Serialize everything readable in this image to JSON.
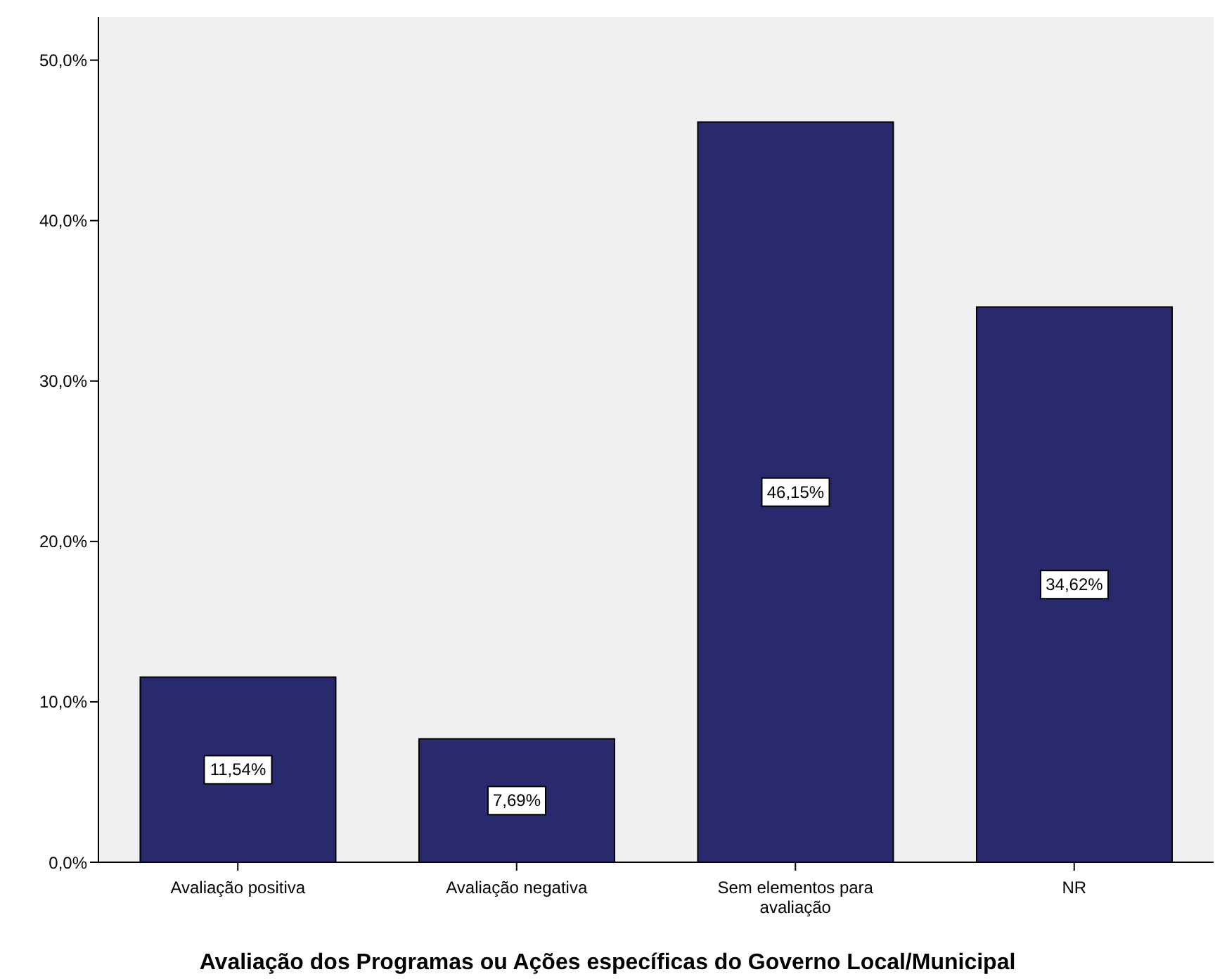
{
  "chart_data": {
    "type": "bar",
    "xlabel": "Avaliação dos Programas ou Ações específicas do Governo Local/Municipal",
    "categories": [
      "Avaliação positiva",
      "Avaliação negativa",
      "Sem elementos para avaliação",
      "NR"
    ],
    "values": [
      11.54,
      7.69,
      46.15,
      34.62
    ],
    "value_labels": [
      "11,54%",
      "7,69%",
      "46,15%",
      "34,62%"
    ],
    "color": "#29296e",
    "ylim": [
      0,
      52.7
    ],
    "yticks": [
      {
        "value": 0,
        "label": "0,0%"
      },
      {
        "value": 10,
        "label": "10,0%"
      },
      {
        "value": 20,
        "label": "20,0%"
      },
      {
        "value": 30,
        "label": "30,0%"
      },
      {
        "value": 40,
        "label": "40,0%"
      },
      {
        "value": 50,
        "label": "50,0%"
      }
    ]
  }
}
